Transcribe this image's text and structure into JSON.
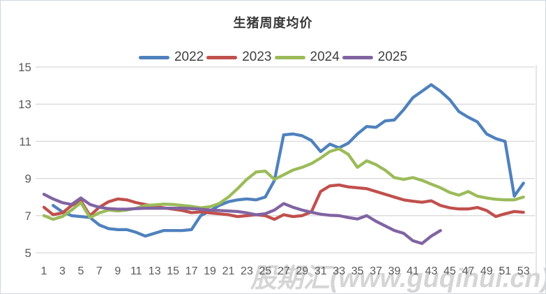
{
  "watermark": {
    "text": "股期汇(www.guqihui.cn)"
  },
  "chart_data": {
    "type": "line",
    "title": "生猪周度均价",
    "xlabel": "",
    "ylabel": "",
    "ylim": [
      5,
      15
    ],
    "y_ticks": [
      5,
      7,
      9,
      11,
      13,
      15
    ],
    "x_range": [
      1,
      53
    ],
    "x_tick_labels": [
      "1",
      "3",
      "5",
      "7",
      "9",
      "11",
      "13",
      "15",
      "17",
      "19",
      "21",
      "23",
      "25",
      "27",
      "29",
      "31",
      "33",
      "35",
      "37",
      "39",
      "41",
      "43",
      "45",
      "47",
      "49",
      "51",
      "53"
    ],
    "grid": "horizontal",
    "grid_color": "#d9d9d9",
    "axis_label_color": "#595959",
    "legend_position": "top",
    "series": [
      {
        "name": "2022",
        "color": "#4F81BD",
        "values": [
          null,
          7.55,
          7.2,
          7.0,
          6.95,
          6.9,
          6.5,
          6.3,
          6.25,
          6.25,
          6.1,
          5.9,
          6.05,
          6.2,
          6.2,
          6.2,
          6.25,
          7.0,
          7.25,
          7.55,
          7.75,
          7.85,
          7.9,
          7.85,
          8.0,
          8.9,
          11.35,
          11.4,
          11.3,
          11.05,
          10.45,
          10.85,
          10.65,
          10.9,
          11.4,
          11.8,
          11.75,
          12.1,
          12.15,
          12.7,
          13.35,
          13.7,
          14.05,
          13.7,
          13.25,
          12.6,
          12.3,
          12.05,
          11.4,
          11.15,
          11.0,
          8.05,
          8.75
        ]
      },
      {
        "name": "2023",
        "color": "#C0504D",
        "values": [
          7.45,
          7.05,
          7.15,
          7.55,
          7.8,
          7.0,
          7.45,
          7.75,
          7.9,
          7.85,
          7.7,
          7.6,
          7.5,
          7.42,
          7.35,
          7.28,
          7.16,
          7.2,
          7.15,
          7.1,
          7.05,
          6.95,
          7.0,
          7.05,
          7.0,
          6.8,
          7.05,
          6.95,
          7.0,
          7.2,
          8.3,
          8.6,
          8.65,
          8.55,
          8.5,
          8.45,
          8.3,
          8.15,
          8.0,
          7.85,
          7.78,
          7.72,
          7.8,
          7.55,
          7.42,
          7.36,
          7.36,
          7.44,
          7.28,
          6.95,
          7.1,
          7.22,
          7.18
        ]
      },
      {
        "name": "2024",
        "color": "#9BBB59",
        "values": [
          7.0,
          6.8,
          6.95,
          7.3,
          7.7,
          6.9,
          7.15,
          7.3,
          7.25,
          7.3,
          7.4,
          7.55,
          7.58,
          7.62,
          7.6,
          7.55,
          7.5,
          7.42,
          7.48,
          7.65,
          8.0,
          8.45,
          8.95,
          9.35,
          9.4,
          8.95,
          9.2,
          9.45,
          9.6,
          9.8,
          10.1,
          10.45,
          10.6,
          10.3,
          9.6,
          9.95,
          9.75,
          9.45,
          9.05,
          8.95,
          9.05,
          8.9,
          8.7,
          8.5,
          8.25,
          8.1,
          8.3,
          8.05,
          7.95,
          7.88,
          7.85,
          7.85,
          8.0
        ]
      },
      {
        "name": "2025",
        "color": "#8064A2",
        "values": [
          8.15,
          7.9,
          7.7,
          7.6,
          7.95,
          7.6,
          7.45,
          7.38,
          7.35,
          7.35,
          7.38,
          7.4,
          7.4,
          7.4,
          7.4,
          7.4,
          7.38,
          7.35,
          7.3,
          7.28,
          7.25,
          7.22,
          7.15,
          7.05,
          7.1,
          7.3,
          7.65,
          7.45,
          7.3,
          7.18,
          7.08,
          7.02,
          7.0,
          6.9,
          6.82,
          7.0,
          6.7,
          6.45,
          6.2,
          6.05,
          5.65,
          5.5,
          5.9,
          6.2,
          null,
          null,
          null,
          null,
          null,
          null,
          null,
          null,
          null
        ]
      }
    ]
  }
}
